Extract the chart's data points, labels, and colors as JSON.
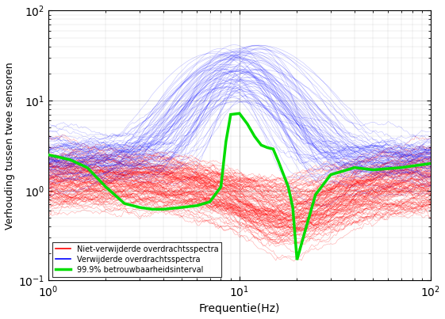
{
  "xlabel": "Frequentie(Hz)",
  "ylabel": "Verhouding tussen twee sensoren",
  "xlim": [
    1,
    100
  ],
  "ylim": [
    0.1,
    100
  ],
  "legend_labels": [
    "Niet-verwijderde overdrachtsspectra",
    "Verwijderde overdrachtsspectra",
    "99.9% betrouwbaarheidsinterval"
  ],
  "green_lw": 2.5,
  "n_red": 120,
  "n_blue": 80,
  "seed": 42,
  "green_freqs": [
    1.0,
    1.3,
    1.6,
    2.0,
    2.5,
    3.0,
    3.5,
    4.0,
    5.0,
    6.0,
    7.0,
    8.0,
    8.5,
    9.0,
    10.0,
    11.0,
    12.0,
    13.0,
    14.0,
    15.0,
    16.0,
    18.0,
    19.0,
    20.0,
    22.0,
    25.0,
    30.0,
    40.0,
    50.0,
    70.0,
    100.0
  ],
  "green_vals": [
    2.5,
    2.2,
    1.8,
    1.1,
    0.72,
    0.65,
    0.62,
    0.62,
    0.65,
    0.68,
    0.75,
    1.1,
    3.5,
    7.0,
    7.2,
    5.5,
    4.0,
    3.2,
    3.0,
    2.9,
    2.1,
    1.1,
    0.65,
    0.17,
    0.35,
    0.9,
    1.5,
    1.8,
    1.7,
    1.8,
    2.0
  ]
}
